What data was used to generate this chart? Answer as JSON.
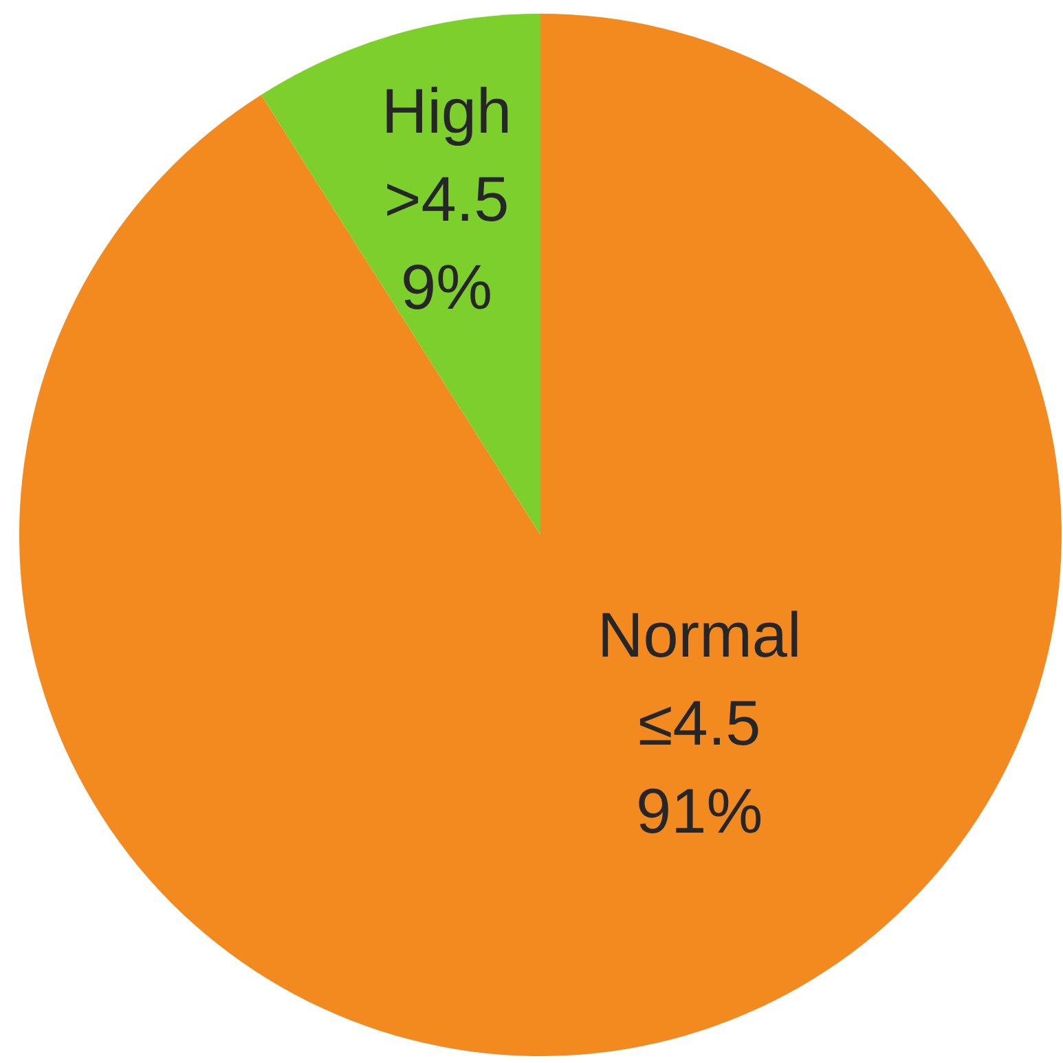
{
  "chart_data": {
    "type": "pie",
    "categories": [
      "Normal\n≤4.5",
      "High\n>4.5"
    ],
    "values": [
      91,
      9
    ],
    "colors": [
      "#f38a1f",
      "#7dcf2b"
    ],
    "value_labels": [
      "91%",
      "9%"
    ]
  }
}
